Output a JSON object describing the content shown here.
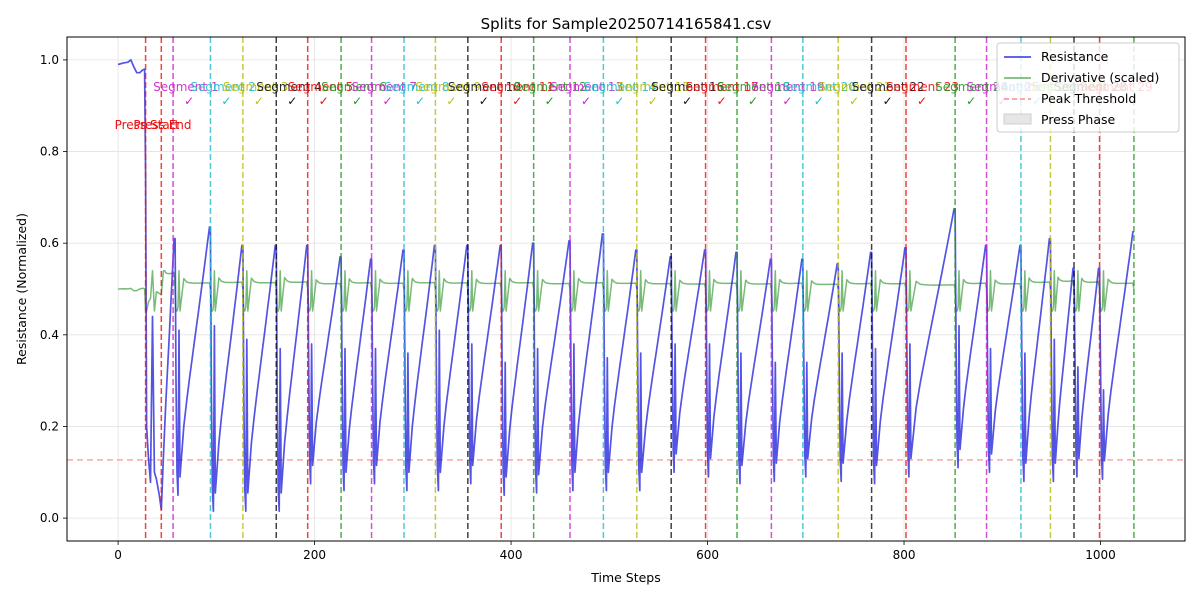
{
  "chart_data": {
    "type": "line",
    "title": "Splits for Sample20250714165841.csv",
    "xlabel": "Time Steps",
    "ylabel": "Resistance (Normalized)",
    "xlim": [
      -52,
      1086
    ],
    "ylim": [
      -0.05,
      1.05
    ],
    "x_ticks": [
      0,
      200,
      400,
      600,
      800,
      1000
    ],
    "y_ticks": [
      0.0,
      0.2,
      0.4,
      0.6,
      0.8,
      1.0
    ],
    "grid": true,
    "legend_position": "top-right",
    "legend": [
      {
        "label": "Resistance",
        "style": "line",
        "color": "#2222dd"
      },
      {
        "label": "Derivative (scaled)",
        "style": "line",
        "color": "#55aa55"
      },
      {
        "label": "Peak Threshold",
        "style": "dashed",
        "color": "#ff8888"
      },
      {
        "label": "Press Phase",
        "style": "patch",
        "color": "#e6e6e6"
      }
    ],
    "peak_threshold": 0.127,
    "derivative_baseline": 0.5,
    "press_start": 28,
    "press_end": 44,
    "press_labels": [
      "Press Start",
      "Press End"
    ],
    "split_lines": [
      {
        "x": 28,
        "color": "#ee1111"
      },
      {
        "x": 44,
        "color": "#ee1111"
      },
      {
        "x": 56,
        "color": "#cc22cc"
      },
      {
        "x": 94,
        "color": "#22bbcc"
      },
      {
        "x": 127,
        "color": "#bbbb11"
      },
      {
        "x": 161,
        "color": "#111111"
      },
      {
        "x": 193,
        "color": "#ee1111"
      },
      {
        "x": 227,
        "color": "#229922"
      },
      {
        "x": 258,
        "color": "#cc22cc"
      },
      {
        "x": 291,
        "color": "#22bbcc"
      },
      {
        "x": 323,
        "color": "#bbbb11"
      },
      {
        "x": 356,
        "color": "#111111"
      },
      {
        "x": 390,
        "color": "#ee1111"
      },
      {
        "x": 423,
        "color": "#229922"
      },
      {
        "x": 460,
        "color": "#cc22cc"
      },
      {
        "x": 494,
        "color": "#22bbcc"
      },
      {
        "x": 528,
        "color": "#bbbb11"
      },
      {
        "x": 563,
        "color": "#111111"
      },
      {
        "x": 598,
        "color": "#ee1111"
      },
      {
        "x": 630,
        "color": "#229922"
      },
      {
        "x": 665,
        "color": "#cc22cc"
      },
      {
        "x": 697,
        "color": "#22bbcc"
      },
      {
        "x": 733,
        "color": "#bbbb11"
      },
      {
        "x": 767,
        "color": "#111111"
      },
      {
        "x": 802,
        "color": "#ee1111"
      },
      {
        "x": 852,
        "color": "#229922"
      },
      {
        "x": 884,
        "color": "#cc22cc"
      },
      {
        "x": 919,
        "color": "#22bbcc"
      },
      {
        "x": 949,
        "color": "#bbbb11"
      },
      {
        "x": 973,
        "color": "#111111"
      },
      {
        "x": 999,
        "color": "#ee1111"
      },
      {
        "x": 1034,
        "color": "#229922"
      }
    ],
    "segment_labels": [
      {
        "text": "Segment 1",
        "x": 56,
        "color": "#cc22cc"
      },
      {
        "text": "Segment 2",
        "x": 94,
        "color": "#22bbcc"
      },
      {
        "text": "Segment 3",
        "x": 127,
        "color": "#bbbb11"
      },
      {
        "text": "Segment 4",
        "x": 161,
        "color": "#111111"
      },
      {
        "text": "Segment 5",
        "x": 193,
        "color": "#ee1111"
      },
      {
        "text": "Segment 6",
        "x": 227,
        "color": "#229922"
      },
      {
        "text": "Segment 7",
        "x": 258,
        "color": "#cc22cc"
      },
      {
        "text": "Segment 8",
        "x": 291,
        "color": "#22bbcc"
      },
      {
        "text": "Segment 9",
        "x": 323,
        "color": "#bbbb11"
      },
      {
        "text": "Segment 10",
        "x": 356,
        "color": "#111111"
      },
      {
        "text": "Segment 11",
        "x": 390,
        "color": "#ee1111"
      },
      {
        "text": "Segment 12",
        "x": 423,
        "color": "#229922"
      },
      {
        "text": "Segment 13",
        "x": 460,
        "color": "#cc22cc"
      },
      {
        "text": "Segment 14",
        "x": 494,
        "color": "#22bbcc"
      },
      {
        "text": "Segment 15",
        "x": 528,
        "color": "#bbbb11"
      },
      {
        "text": "Segment 16",
        "x": 563,
        "color": "#111111"
      },
      {
        "text": "Segment 17",
        "x": 598,
        "color": "#ee1111"
      },
      {
        "text": "Segment 18",
        "x": 630,
        "color": "#229922"
      },
      {
        "text": "Segment 19",
        "x": 665,
        "color": "#cc22cc"
      },
      {
        "text": "Segment 20",
        "x": 697,
        "color": "#22bbcc"
      },
      {
        "text": "Segment 21",
        "x": 733,
        "color": "#bbbb11"
      },
      {
        "text": "Segment 22",
        "x": 767,
        "color": "#111111"
      },
      {
        "text": "Segment 23",
        "x": 802,
        "color": "#ee1111"
      },
      {
        "text": "Segment 24",
        "x": 852,
        "color": "#229922"
      },
      {
        "text": "Segment 25",
        "x": 884,
        "color": "#cc22cc"
      },
      {
        "text": "Segment 26",
        "x": 919,
        "color": "#22bbcc"
      },
      {
        "text": "Segment 27",
        "x": 949,
        "color": "#bbbb11"
      },
      {
        "text": "Segment 28",
        "x": 973,
        "color": "#111111"
      },
      {
        "text": "Segment 29",
        "x": 999,
        "color": "#ee1111"
      }
    ],
    "check_mark": "✓",
    "resistance": {
      "head": [
        [
          0,
          0.99
        ],
        [
          5,
          0.993
        ],
        [
          10,
          0.995
        ],
        [
          13,
          1.0
        ],
        [
          16,
          0.985
        ],
        [
          19,
          0.972
        ],
        [
          22,
          0.972
        ],
        [
          25,
          0.978
        ],
        [
          27,
          0.98
        ],
        [
          28,
          0.75
        ],
        [
          29,
          0.2
        ],
        [
          31,
          0.13
        ],
        [
          33,
          0.078
        ],
        [
          35,
          0.44
        ],
        [
          37,
          0.1
        ],
        [
          39,
          0.085
        ],
        [
          42,
          0.05
        ],
        [
          44,
          0.018
        ]
      ],
      "cycles": [
        {
          "start": 44,
          "peak": 0.61,
          "min": 0.075,
          "spike": 0.45
        },
        {
          "start": 58,
          "peak": 0.635,
          "min": 0.05,
          "spike": 0.41
        },
        {
          "start": 94,
          "peak": 0.595,
          "min": 0.015,
          "spike": 0.42
        },
        {
          "start": 127,
          "peak": 0.595,
          "min": 0.015,
          "spike": 0.39
        },
        {
          "start": 161,
          "peak": 0.595,
          "min": 0.015,
          "spike": 0.37
        },
        {
          "start": 193,
          "peak": 0.57,
          "min": 0.075,
          "spike": 0.38
        },
        {
          "start": 227,
          "peak": 0.565,
          "min": 0.06,
          "spike": 0.37
        },
        {
          "start": 258,
          "peak": 0.585,
          "min": 0.075,
          "spike": 0.37
        },
        {
          "start": 291,
          "peak": 0.595,
          "min": 0.06,
          "spike": 0.36
        },
        {
          "start": 323,
          "peak": 0.595,
          "min": 0.06,
          "spike": 0.41
        },
        {
          "start": 356,
          "peak": 0.595,
          "min": 0.075,
          "spike": 0.38
        },
        {
          "start": 390,
          "peak": 0.6,
          "min": 0.05,
          "spike": 0.34
        },
        {
          "start": 423,
          "peak": 0.605,
          "min": 0.055,
          "spike": 0.37
        },
        {
          "start": 460,
          "peak": 0.62,
          "min": 0.06,
          "spike": 0.38
        },
        {
          "start": 494,
          "peak": 0.585,
          "min": 0.06,
          "spike": 0.35
        },
        {
          "start": 528,
          "peak": 0.57,
          "min": 0.06,
          "spike": 0.36
        },
        {
          "start": 563,
          "peak": 0.585,
          "min": 0.1,
          "spike": 0.38
        },
        {
          "start": 598,
          "peak": 0.58,
          "min": 0.09,
          "spike": 0.38
        },
        {
          "start": 630,
          "peak": 0.565,
          "min": 0.075,
          "spike": 0.36
        },
        {
          "start": 665,
          "peak": 0.565,
          "min": 0.08,
          "spike": 0.34
        },
        {
          "start": 697,
          "peak": 0.555,
          "min": 0.09,
          "spike": 0.34
        },
        {
          "start": 733,
          "peak": 0.58,
          "min": 0.08,
          "spike": 0.36
        },
        {
          "start": 767,
          "peak": 0.59,
          "min": 0.075,
          "spike": 0.37
        },
        {
          "start": 802,
          "peak": 0.675,
          "min": 0.09,
          "spike": 0.38
        },
        {
          "start": 852,
          "peak": 0.595,
          "min": 0.11,
          "spike": 0.42
        },
        {
          "start": 884,
          "peak": 0.595,
          "min": 0.1,
          "spike": 0.37
        },
        {
          "start": 919,
          "peak": 0.61,
          "min": 0.08,
          "spike": 0.36
        },
        {
          "start": 949,
          "peak": 0.545,
          "min": 0.08,
          "spike": 0.39
        },
        {
          "start": 973,
          "peak": 0.545,
          "min": 0.09,
          "spike": 0.33
        },
        {
          "start": 999,
          "peak": 0.625,
          "min": 0.085,
          "spike": 0.28
        }
      ]
    }
  }
}
